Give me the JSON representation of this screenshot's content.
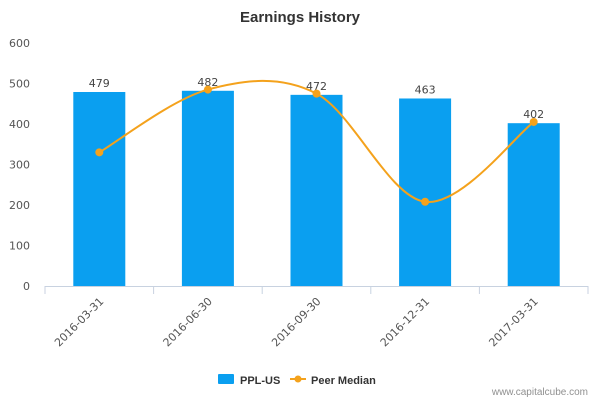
{
  "chart_data": {
    "type": "bar",
    "title": "Earnings History",
    "categories": [
      "2016-03-31",
      "2016-06-30",
      "2016-09-30",
      "2016-12-31",
      "2017-03-31"
    ],
    "ylim": [
      0,
      600
    ],
    "yticks": [
      0,
      100,
      200,
      300,
      400,
      500,
      600
    ],
    "grid": false,
    "series": [
      {
        "name": "PPL-US",
        "type": "bar",
        "values": [
          479,
          482,
          472,
          463,
          402
        ],
        "data_labels": [
          "479",
          "482",
          "472",
          "463",
          "402"
        ],
        "color": "#0a9ff0"
      },
      {
        "name": "Peer Median",
        "type": "line",
        "smooth": true,
        "values": [
          330,
          485,
          475,
          208,
          405
        ],
        "color": "#f4a21c"
      }
    ],
    "legend_position": "bottom-center"
  },
  "credit": "www.capitalcube.com"
}
